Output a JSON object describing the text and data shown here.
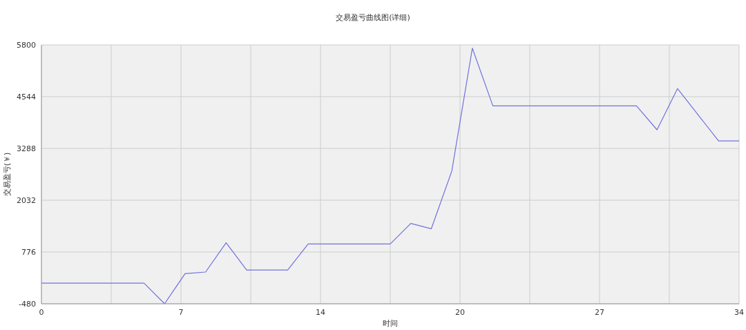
{
  "chart_data": {
    "type": "line",
    "title": "交易盈亏曲线图(详细)",
    "xlabel": "时间",
    "ylabel": "交易盈亏(￥)",
    "x": [
      0,
      5,
      6,
      7,
      8,
      9,
      10,
      12,
      13,
      17,
      18,
      19,
      20,
      21,
      22,
      29,
      30,
      31,
      33,
      34
    ],
    "series": [
      {
        "color": "#7070e0",
        "values": [
          20,
          20,
          -480,
          250,
          290,
          1000,
          340,
          340,
          970,
          970,
          1470,
          1340,
          2740,
          5720,
          4320,
          4320,
          3740,
          4740,
          3470,
          3470
        ]
      }
    ],
    "xlim": [
      0,
      34
    ],
    "xticks": [
      0,
      {
        "value": 3.4,
        "label": null
      },
      {
        "value": 6.8,
        "label": "7"
      },
      {
        "value": 10.2,
        "label": null
      },
      {
        "value": 13.6,
        "label": "14"
      },
      {
        "value": 17,
        "label": null
      },
      {
        "value": 20.4,
        "label": "20"
      },
      {
        "value": 23.8,
        "label": null
      },
      {
        "value": 27.2,
        "label": "27"
      },
      {
        "value": 30.6,
        "label": null
      },
      34
    ],
    "ylim": [
      -480,
      5800
    ],
    "yticks": [
      -480,
      776,
      2032,
      3288,
      4544,
      5800
    ],
    "grid": true,
    "marker": "none",
    "line_style": "solid"
  }
}
